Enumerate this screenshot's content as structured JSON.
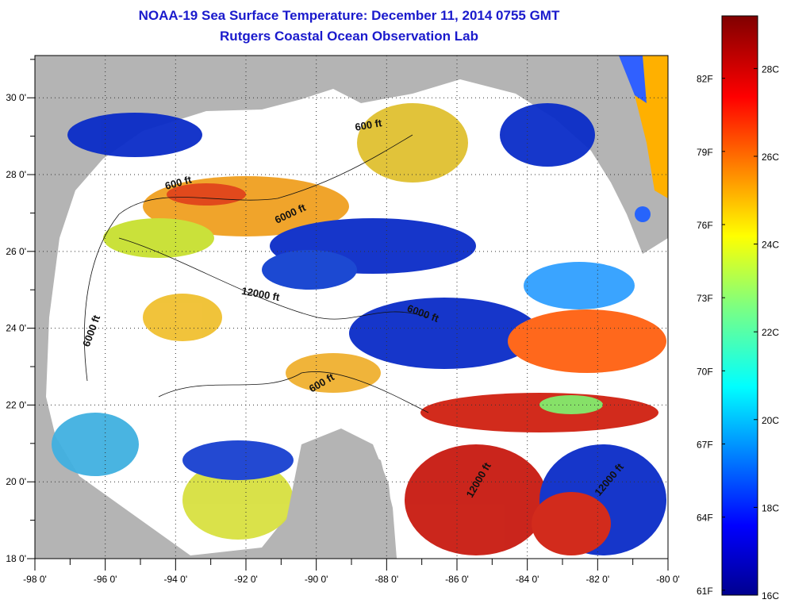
{
  "header": {
    "title": "NOAA-19 Sea Surface Temperature:  December 11, 2014 0755 GMT",
    "subtitle": "Rutgers Coastal Ocean Observation Lab"
  },
  "map": {
    "lon_range": [
      -98,
      -80
    ],
    "lat_range": [
      18,
      31.1
    ],
    "lon_labels": [
      "-98 0'",
      "-96 0'",
      "-94 0'",
      "-92 0'",
      "-90 0'",
      "-88 0'",
      "-86 0'",
      "-84 0'",
      "-82 0'",
      "-80 0'"
    ],
    "lat_labels": [
      "18 0'",
      "20 0'",
      "22 0'",
      "24 0'",
      "26 0'",
      "28 0'",
      "30 0'"
    ],
    "contour_labels": [
      {
        "text": "600 ft",
        "lon": -93.9,
        "lat": 27.7,
        "rot": -15
      },
      {
        "text": "600 ft",
        "lon": -88.5,
        "lat": 29.2,
        "rot": -10
      },
      {
        "text": "6000 ft",
        "lon": -90.7,
        "lat": 26.9,
        "rot": -25
      },
      {
        "text": "12000 ft",
        "lon": -91.6,
        "lat": 24.8,
        "rot": 10
      },
      {
        "text": "6000 ft",
        "lon": -96.3,
        "lat": 23.9,
        "rot": -70
      },
      {
        "text": "6000 ft",
        "lon": -87.0,
        "lat": 24.3,
        "rot": 20
      },
      {
        "text": "600 ft",
        "lon": -89.8,
        "lat": 22.5,
        "rot": -30
      },
      {
        "text": "12000 ft",
        "lon": -85.3,
        "lat": 20.0,
        "rot": -60
      },
      {
        "text": "12000 ft",
        "lon": -81.6,
        "lat": 20.0,
        "rot": -50
      }
    ],
    "land_color": "#b4b4b4",
    "cloud_color": "#ffffff"
  },
  "colorbar": {
    "f_labels": [
      "82F",
      "79F",
      "76F",
      "73F",
      "70F",
      "67F",
      "64F",
      "61F"
    ],
    "c_labels": [
      "28C",
      "26C",
      "24C",
      "22C",
      "20C",
      "18C",
      "16C"
    ],
    "range_c": [
      16,
      29.2
    ]
  }
}
